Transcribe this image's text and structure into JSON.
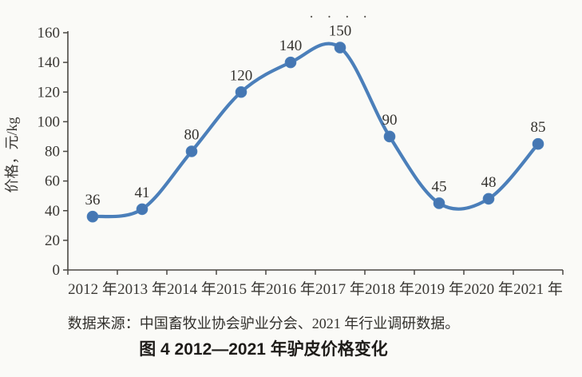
{
  "page": {
    "background": "#fafaf7"
  },
  "chart_data": {
    "type": "line",
    "title": "",
    "series_name": "驴皮价格",
    "categories": [
      "2012 年",
      "2013 年",
      "2014 年",
      "2015 年",
      "2016 年",
      "2017 年",
      "2018 年",
      "2019 年",
      "2020 年",
      "2021 年"
    ],
    "values": [
      36,
      41,
      80,
      120,
      140,
      150,
      90,
      45,
      48,
      85
    ],
    "xlabel": "",
    "ylabel": "价格，元/kg",
    "ylim": [
      0,
      160
    ],
    "yticks": [
      0,
      20,
      40,
      60,
      80,
      100,
      120,
      140,
      160
    ],
    "grid": false,
    "legend_position": "none",
    "smooth": true,
    "data_labels": true,
    "line_color": "#4b7fba",
    "marker_color": "#4577b3",
    "label_color": "#35332f",
    "axis_color": "#4a4843",
    "tick_label_color": "#3a3834"
  },
  "print_artifact": "· · · ·",
  "source_note": "数据来源：中国畜牧业协会驴业分会、2021 年行业调研数据。",
  "caption": "图 4  2012—2021 年驴皮价格变化"
}
